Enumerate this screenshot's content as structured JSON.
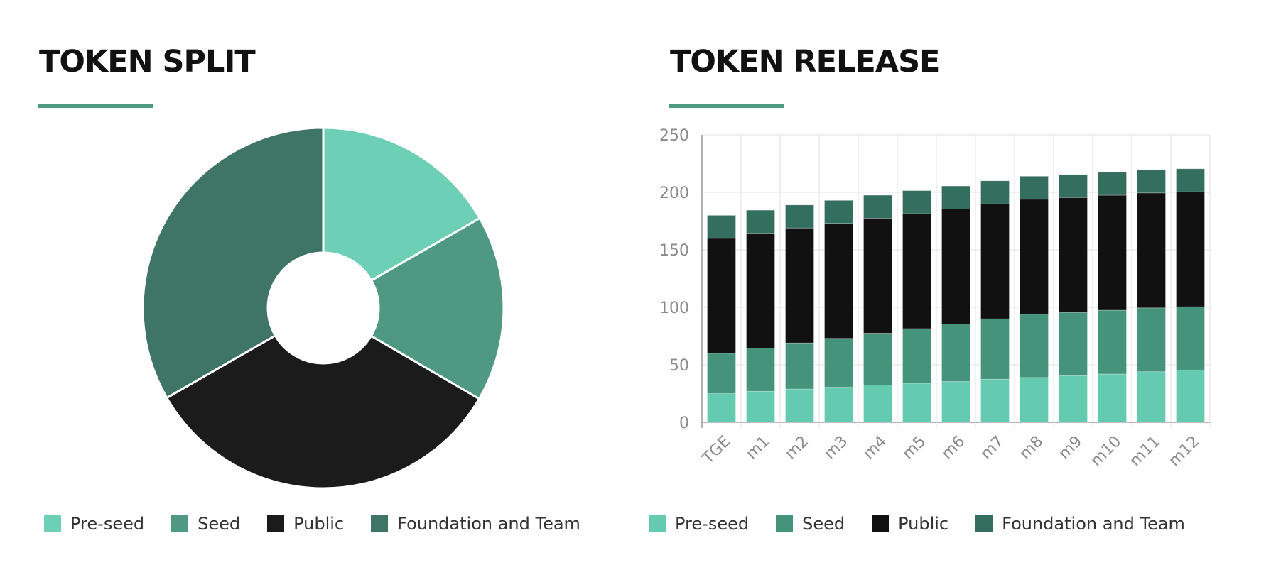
{
  "colors": {
    "accent": "#4c9a82",
    "pre_seed": "#65cbb0",
    "seed": "#46937c",
    "public": "#111111",
    "foundation": "#336e5e",
    "pie_pre_seed": "#6dcfb5",
    "pie_seed": "#4f9883",
    "pie_public": "#1b1b1b",
    "pie_foundation": "#3e7566"
  },
  "token_split": {
    "title": "TOKEN SPLIT",
    "legend": [
      "Pre-seed",
      "Seed",
      "Public",
      "Foundation and Team"
    ]
  },
  "token_release": {
    "title": "TOKEN RELEASE",
    "legend": [
      "Pre-seed",
      "Seed",
      "Public",
      "Foundation and Team"
    ]
  },
  "chart_data": [
    {
      "type": "pie",
      "variant": "donut",
      "categories": [
        "Pre-seed",
        "Seed",
        "Public",
        "Foundation and Team"
      ],
      "values": [
        16.7,
        16.7,
        33.3,
        33.3
      ]
    },
    {
      "type": "bar",
      "stacked": true,
      "categories": [
        "TGE",
        "m1",
        "m2",
        "m3",
        "m4",
        "m5",
        "m6",
        "m7",
        "m8",
        "m9",
        "m10",
        "m11",
        "m12"
      ],
      "series": [
        {
          "name": "Pre-seed",
          "values": [
            25,
            27,
            29,
            30.5,
            32.5,
            34,
            35.5,
            37.5,
            39,
            40.5,
            42,
            44,
            45.5
          ]
        },
        {
          "name": "Seed",
          "values": [
            35,
            37.5,
            40,
            42.5,
            45,
            47.5,
            50,
            52.5,
            55,
            55,
            55.5,
            55.5,
            55
          ]
        },
        {
          "name": "Public",
          "values": [
            100,
            100,
            100,
            100,
            100,
            100,
            100,
            100,
            100,
            100,
            100,
            100,
            100
          ]
        },
        {
          "name": "Foundation and Team",
          "values": [
            20,
            20,
            20,
            20,
            20,
            20,
            20,
            20,
            20,
            20,
            20,
            20,
            20
          ]
        }
      ],
      "yticks": [
        0,
        50,
        100,
        150,
        200,
        250
      ],
      "ylim": [
        0,
        250
      ],
      "grid": true,
      "legend_position": "bottom"
    }
  ]
}
